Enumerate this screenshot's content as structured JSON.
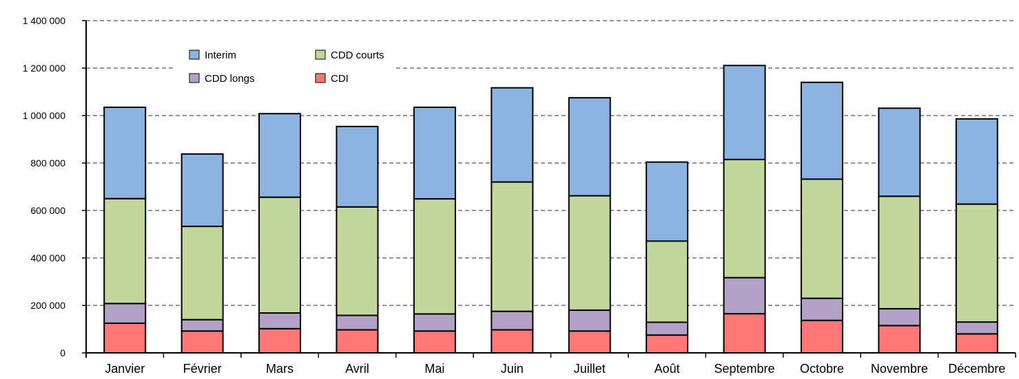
{
  "chart_data": {
    "type": "bar",
    "stacked": true,
    "categories": [
      "Janvier",
      "Février",
      "Mars",
      "Avril",
      "Mai",
      "Juin",
      "Juillet",
      "Août",
      "Septembre",
      "Octobre",
      "Novembre",
      "Décembre"
    ],
    "series": [
      {
        "name": "CDI",
        "color": "#ff7777",
        "values": [
          125000,
          92000,
          102000,
          97000,
          92000,
          97000,
          92000,
          75000,
          165000,
          137000,
          115000,
          80000
        ]
      },
      {
        "name": "CDD longs",
        "color": "#b3a2c7",
        "values": [
          83000,
          48000,
          66000,
          61000,
          72000,
          78000,
          88000,
          54000,
          152000,
          93000,
          71000,
          50000
        ]
      },
      {
        "name": "CDD courts",
        "color": "#c3d69b",
        "values": [
          442000,
          393000,
          488000,
          457000,
          485000,
          545000,
          482000,
          342000,
          498000,
          502000,
          474000,
          497000
        ]
      },
      {
        "name": "Interim",
        "color": "#8db3e2",
        "values": [
          385000,
          305000,
          352000,
          339000,
          386000,
          397000,
          413000,
          333000,
          396000,
          408000,
          371000,
          359000
        ]
      }
    ],
    "yticks": [
      "0",
      "200 000",
      "400 000",
      "600 000",
      "800 000",
      "1 000 000",
      "1 200 000",
      "1 400 000"
    ],
    "ylim": [
      0,
      1400000
    ],
    "title": "",
    "xlabel": "",
    "ylabel": "",
    "grid": "horizontal dashed",
    "legend_position": "top-left"
  }
}
